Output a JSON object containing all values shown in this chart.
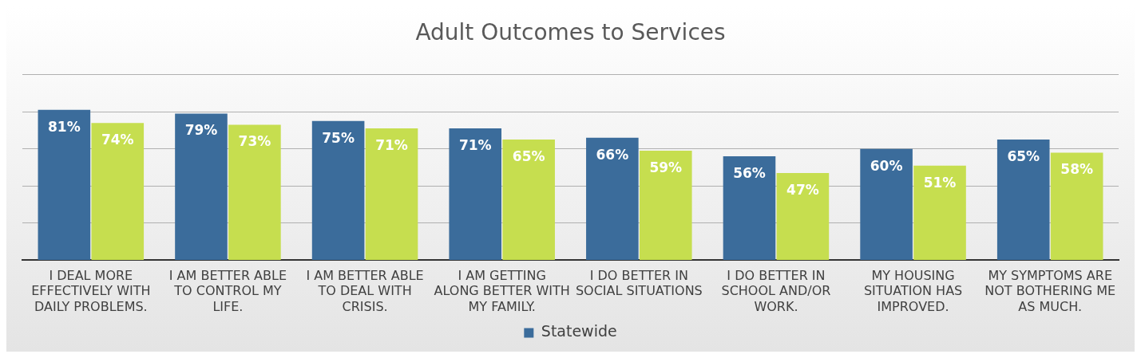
{
  "chart_data": {
    "type": "bar",
    "title": "Adult Outcomes to Services",
    "categories": [
      "I DEAL MORE EFFECTIVELY WITH DAILY PROBLEMS.",
      "I AM BETTER ABLE TO CONTROL MY LIFE.",
      "I AM BETTER ABLE TO DEAL WITH CRISIS.",
      "I AM GETTING ALONG BETTER WITH MY FAMILY.",
      "I DO BETTER IN SOCIAL SITUATIONS",
      "I DO BETTER IN SCHOOL AND/OR WORK.",
      "MY HOUSING SITUATION HAS IMPROVED.",
      "MY SYMPTOMS ARE NOT BOTHERING ME AS MUCH."
    ],
    "series": [
      {
        "name": "Statewide",
        "color": "#3b6c9b",
        "values": [
          81,
          79,
          75,
          71,
          66,
          56,
          60,
          65
        ],
        "value_labels": [
          "81%",
          "79%",
          "75%",
          "71%",
          "66%",
          "56%",
          "60%",
          "65%"
        ]
      },
      {
        "color": "#c6de4f",
        "values": [
          74,
          73,
          71,
          65,
          59,
          47,
          51,
          58
        ],
        "value_labels": [
          "74%",
          "73%",
          "71%",
          "65%",
          "59%",
          "47%",
          "51%",
          "58%"
        ]
      }
    ],
    "tick_labels": "x",
    "grid": "y",
    "legend": "bottom"
  }
}
